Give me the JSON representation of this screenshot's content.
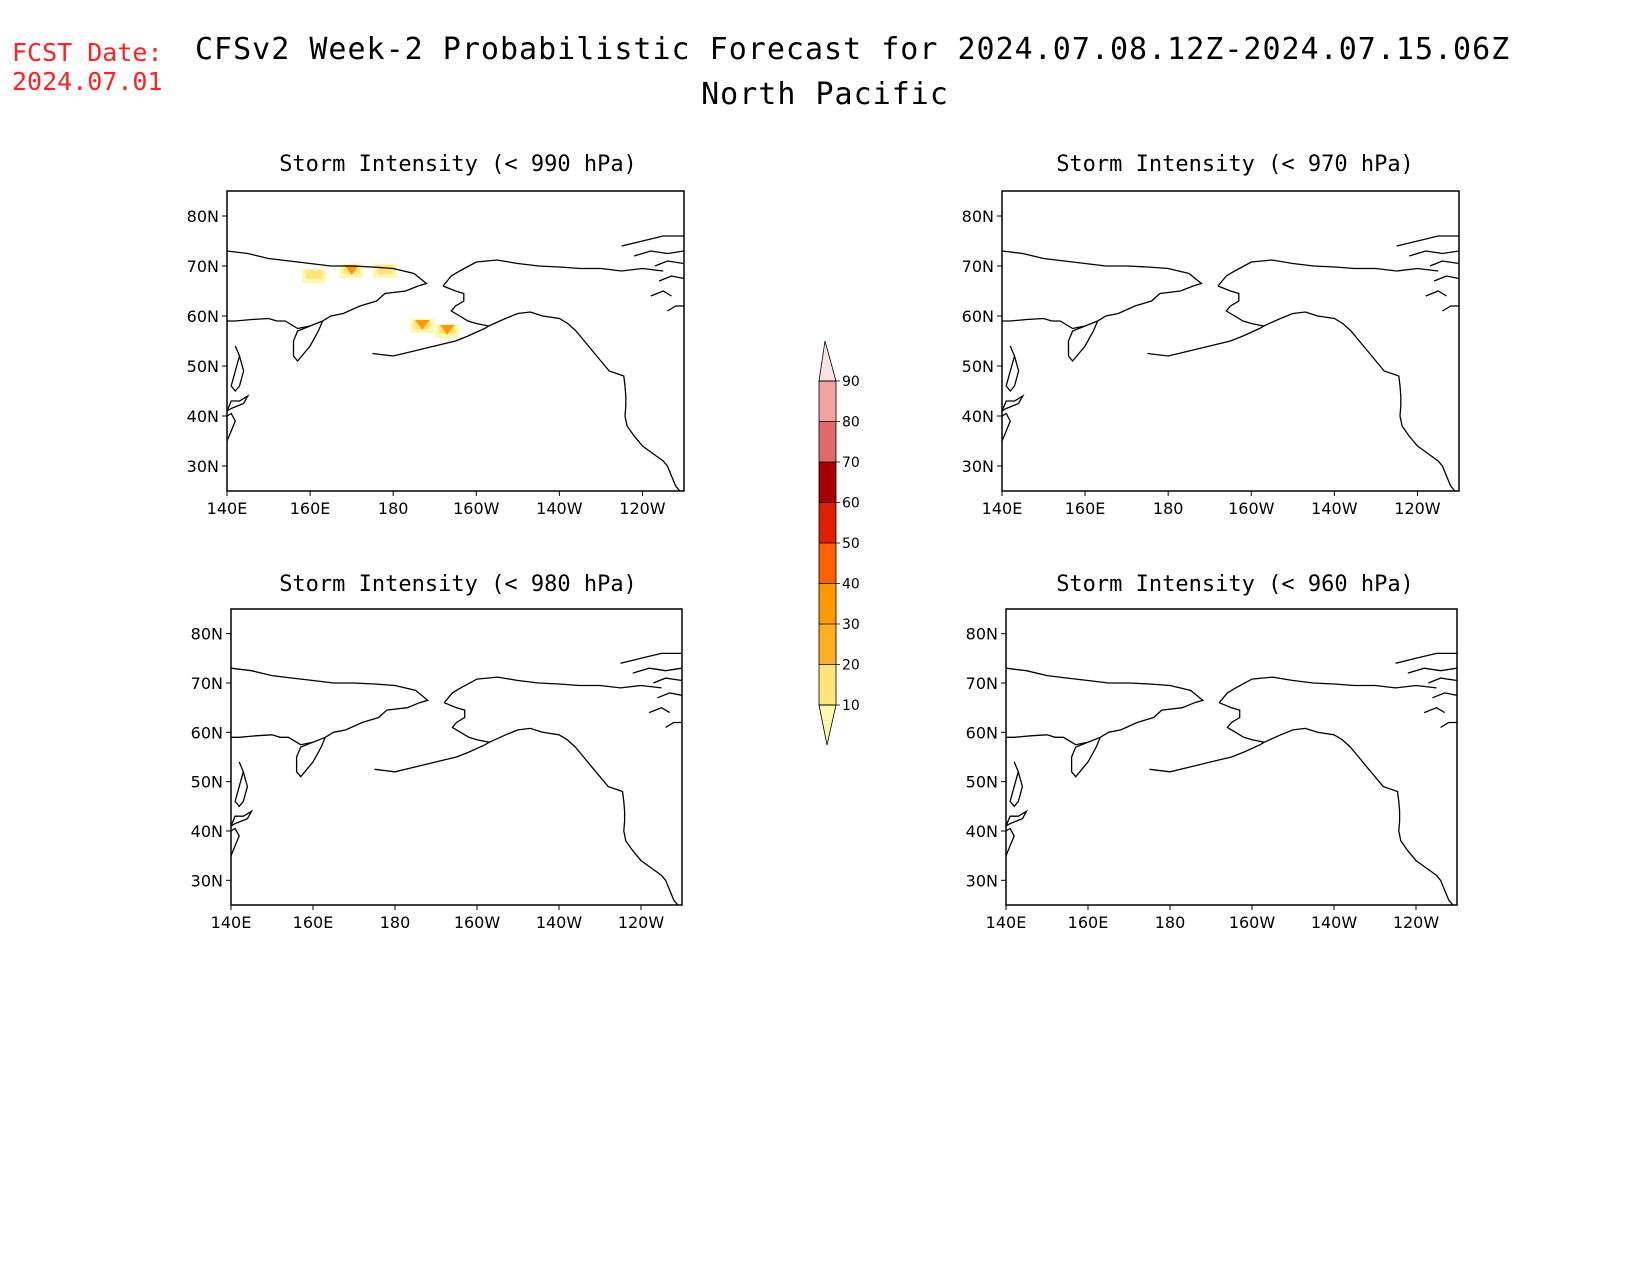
{
  "header": {
    "fcst_label": "FCST Date:",
    "fcst_date": "2024.07.01",
    "title": "CFSv2 Week-2 Probabilistic Forecast for 2024.07.08.12Z-2024.07.15.06Z",
    "region": "North Pacific"
  },
  "panels": [
    {
      "title": "Storm Intensity (< 990 hPa)"
    },
    {
      "title": "Storm Intensity (< 970 hPa)"
    },
    {
      "title": "Storm Intensity (< 980 hPa)"
    },
    {
      "title": "Storm Intensity (< 960 hPa)"
    }
  ],
  "axes": {
    "lat_labels": [
      "80N",
      "70N",
      "60N",
      "50N",
      "40N",
      "30N"
    ],
    "lon_labels": [
      "140E",
      "160E",
      "180",
      "160W",
      "140W",
      "120W"
    ],
    "lat_range": [
      25,
      85
    ],
    "lon_range_deg_east": [
      140,
      250
    ]
  },
  "colorbar": {
    "levels": [
      "10",
      "20",
      "30",
      "40",
      "50",
      "60",
      "70",
      "80",
      "90"
    ],
    "colors": [
      "#fff9b0",
      "#ffe57a",
      "#ffb020",
      "#ff9900",
      "#ff6000",
      "#e01e00",
      "#a80000",
      "#e06a6a",
      "#f2a2a2",
      "#fde2e2"
    ]
  },
  "probability_patches_990": [
    {
      "lat": 69,
      "lon": 170,
      "level": "40"
    },
    {
      "lat": 58,
      "lon": 187,
      "level": "40"
    },
    {
      "lat": 57,
      "lon": 193,
      "level": "40"
    },
    {
      "lat": 69,
      "lon": 178,
      "level": "20"
    },
    {
      "lat": 68,
      "lon": 161,
      "level": "10"
    }
  ]
}
